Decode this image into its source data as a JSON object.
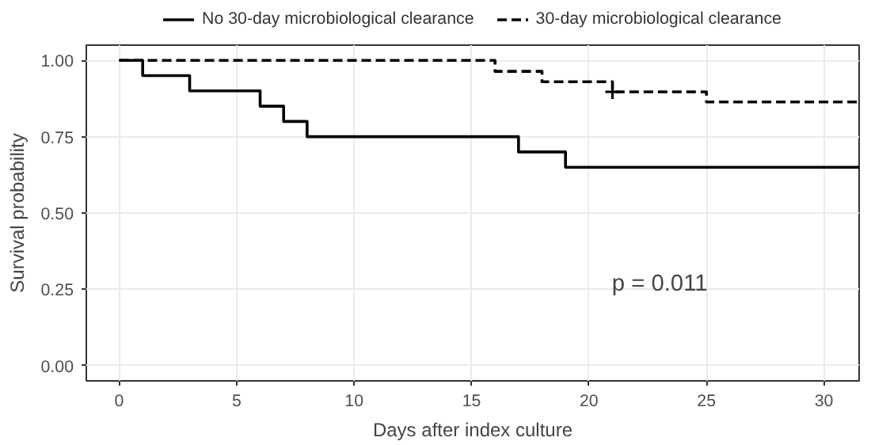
{
  "chart_data": {
    "type": "step",
    "xlabel": "Days after index culture",
    "ylabel": "Survival probability",
    "series": [
      {
        "name": "No 30-day microbiological clearance",
        "color": "#000000",
        "line_style": "solid",
        "x": [
          0,
          1,
          3,
          6,
          7,
          8,
          17,
          19,
          31.5
        ],
        "values": [
          1.0,
          0.95,
          0.9,
          0.85,
          0.8,
          0.75,
          0.7,
          0.65,
          0.65
        ]
      },
      {
        "name": "30-day microbiological clearance",
        "color": "#000000",
        "line_style": "dashed",
        "x": [
          0,
          16,
          18,
          21,
          25,
          31.5
        ],
        "values": [
          1.0,
          0.964,
          0.93,
          0.897,
          0.864,
          0.864
        ]
      },
      {
        "type": "scatter",
        "marker": "cross",
        "color": "#000000",
        "x": [
          21
        ],
        "values": [
          0.897
        ]
      }
    ],
    "xlim": [
      -1.4,
      31.5
    ],
    "ylim": [
      -0.05,
      1.05
    ],
    "xticks": [
      0,
      5,
      10,
      15,
      20,
      25,
      30
    ],
    "yticks": [
      {
        "value": 0,
        "label": "0.00"
      },
      {
        "value": 0.25,
        "label": "0.25"
      },
      {
        "value": 0.5,
        "label": "0.50"
      },
      {
        "value": 0.75,
        "label": "0.75"
      },
      {
        "value": 1,
        "label": "1.00"
      }
    ],
    "grid": true,
    "legend": "top",
    "annotations": [
      "p = 0.011"
    ]
  }
}
